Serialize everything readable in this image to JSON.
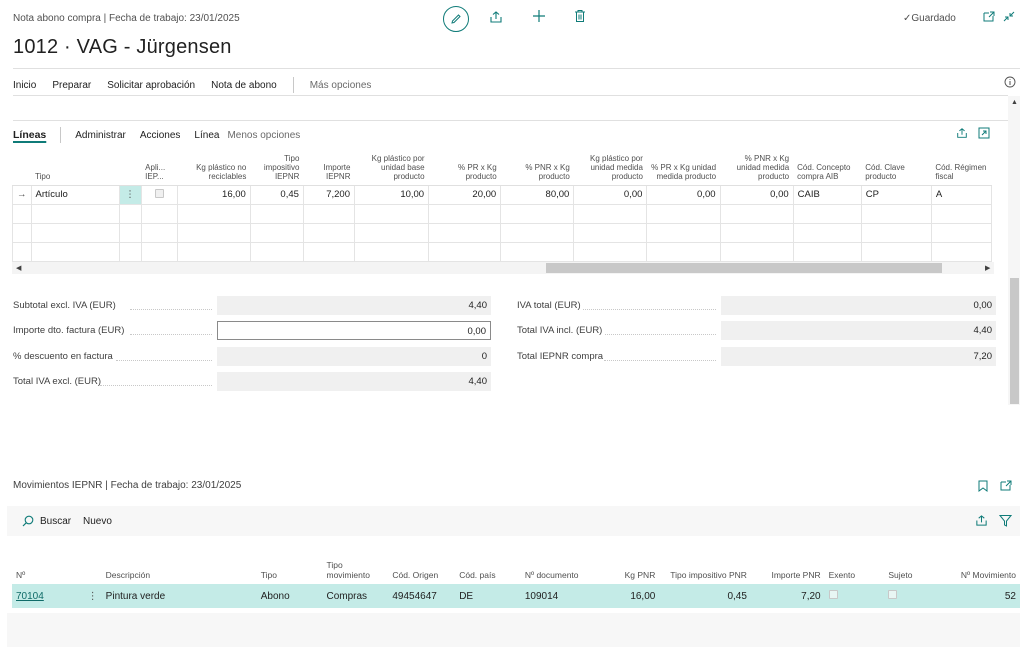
{
  "header": {
    "breadcrumb": "Nota abono compra | Fecha de trabajo: 23/01/2025",
    "title": "1012 · VAG - Jürgensen",
    "saved_label": "Guardado"
  },
  "actions": {
    "inicio": "Inicio",
    "preparar": "Preparar",
    "solicitar": "Solicitar aprobación",
    "nota": "Nota de abono",
    "mas": "Más opciones"
  },
  "lines_bar": {
    "title": "Líneas",
    "administrar": "Administrar",
    "acciones": "Acciones",
    "linea": "Línea",
    "menos": "Menos opciones"
  },
  "lines_table": {
    "headers": {
      "tipo": "Tipo",
      "apli": "Apli... IEP...",
      "kg_no_rec": "Kg plástico no reciclables",
      "tipo_imp": "Tipo impositivo IEPNR",
      "importe": "Importe IEPNR",
      "kg_base": "Kg plástico por unidad base producto",
      "pr": "% PR x Kg producto",
      "pnr": "% PNR x Kg producto",
      "kg_medida": "Kg plástico por unidad medida producto",
      "pr_medida": "% PR x Kg unidad medida producto",
      "pnr_medida": "% PNR x Kg unidad medida producto",
      "concepto": "Cód. Concepto compra AIB",
      "clave": "Cód. Clave producto",
      "regimen": "Cód. Régimen fiscal"
    },
    "row": {
      "tipo": "Artículo",
      "kg_no_rec": "16,00",
      "tipo_imp": "0,45",
      "importe": "7,200",
      "kg_base": "10,00",
      "pr": "20,00",
      "pnr": "80,00",
      "kg_medida": "0,00",
      "pr_medida": "0,00",
      "pnr_medida": "0,00",
      "concepto": "CAIB",
      "clave": "CP",
      "regimen": "A"
    }
  },
  "totals": {
    "subtotal_label": "Subtotal excl. IVA (EUR)",
    "subtotal_value": "4,40",
    "dto_label": "Importe dto. factura (EUR)",
    "dto_value": "0,00",
    "pct_label": "% descuento en factura",
    "pct_value": "0",
    "total_excl_label": "Total IVA excl. (EUR)",
    "total_excl_value": "4,40",
    "iva_label": "IVA total (EUR)",
    "iva_value": "0,00",
    "total_incl_label": "Total IVA incl. (EUR)",
    "total_incl_value": "4,40",
    "iepnr_label": "Total IEPNR compra",
    "iepnr_value": "7,20"
  },
  "movimientos": {
    "title": "Movimientos IEPNR | Fecha de trabajo: 23/01/2025",
    "buscar": "Buscar",
    "nuevo": "Nuevo",
    "headers": {
      "no": "Nº",
      "descripcion": "Descripción",
      "tipo": "Tipo",
      "tipo_mov": "Tipo movimiento",
      "origen": "Cód. Origen",
      "pais": "Cód. país",
      "documento": "Nº documento",
      "kg_pnr": "Kg PNR",
      "tipo_imp": "Tipo impositivo PNR",
      "importe": "Importe PNR",
      "exento": "Exento",
      "sujeto": "Sujeto",
      "movimiento": "Nº Movimiento"
    },
    "row": {
      "no": "70104",
      "descripcion": "Pintura verde",
      "tipo": "Abono",
      "tipo_mov": "Compras",
      "origen": "49454647",
      "pais": "DE",
      "documento": "109014",
      "kg_pnr": "16,00",
      "tipo_imp": "0,45",
      "importe": "7,20",
      "movimiento": "52"
    }
  },
  "colors": {
    "accent": "#0f7b78",
    "selected_row": "#c4ebe7"
  }
}
